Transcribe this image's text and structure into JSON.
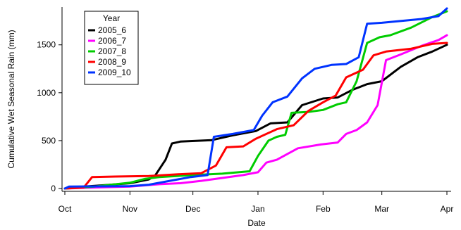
{
  "chart_data": {
    "type": "line",
    "xlabel": "Date",
    "ylabel": "Cumulative Wet Seasonal Rain (mm)",
    "ylim": [
      0,
      1880
    ],
    "yticks": [
      0,
      500,
      1000,
      1500
    ],
    "xrange": [
      "Oct 1",
      "Apr 1"
    ],
    "xticks": [
      {
        "label": "Oct",
        "date": "Oct 1"
      },
      {
        "label": "Nov",
        "date": "Nov 1"
      },
      {
        "label": "Dec",
        "date": "Dec 1"
      },
      {
        "label": "Jan",
        "date": "Jan 1"
      },
      {
        "label": "Feb",
        "date": "Feb 1"
      },
      {
        "label": "Mar",
        "date": "Mar 1"
      },
      {
        "label": "Apr",
        "date": "Apr 1"
      }
    ],
    "legend": {
      "title": "Year",
      "placement": "top-left"
    },
    "series": [
      {
        "name": "2005_6",
        "color": "#000000",
        "points": [
          [
            "Oct 1",
            0
          ],
          [
            "Oct 10",
            20
          ],
          [
            "Oct 20",
            35
          ],
          [
            "Nov 1",
            55
          ],
          [
            "Nov 10",
            95
          ],
          [
            "Nov 13",
            135
          ],
          [
            "Nov 18",
            300
          ],
          [
            "Nov 21",
            470
          ],
          [
            "Nov 25",
            490
          ],
          [
            "Dec 10",
            505
          ],
          [
            "Dec 20",
            555
          ],
          [
            "Dec 31",
            600
          ],
          [
            "Jan 7",
            680
          ],
          [
            "Jan 15",
            690
          ],
          [
            "Jan 22",
            870
          ],
          [
            "Feb 1",
            940
          ],
          [
            "Feb 8",
            950
          ],
          [
            "Feb 15",
            1030
          ],
          [
            "Feb 22",
            1090
          ],
          [
            "Mar 1",
            1120
          ],
          [
            "Mar 10",
            1270
          ],
          [
            "Mar 18",
            1370
          ],
          [
            "Mar 25",
            1430
          ],
          [
            "Apr 1",
            1500
          ]
        ]
      },
      {
        "name": "2006_7",
        "color": "#ff00ff",
        "points": [
          [
            "Oct 1",
            0
          ],
          [
            "Oct 15",
            10
          ],
          [
            "Nov 1",
            20
          ],
          [
            "Nov 15",
            45
          ],
          [
            "Nov 25",
            55
          ],
          [
            "Dec 5",
            80
          ],
          [
            "Dec 15",
            110
          ],
          [
            "Dec 25",
            140
          ],
          [
            "Jan 1",
            170
          ],
          [
            "Jan 5",
            270
          ],
          [
            "Jan 10",
            300
          ],
          [
            "Jan 20",
            420
          ],
          [
            "Jan 31",
            460
          ],
          [
            "Feb 8",
            480
          ],
          [
            "Feb 12",
            570
          ],
          [
            "Feb 17",
            610
          ],
          [
            "Feb 22",
            690
          ],
          [
            "Feb 27",
            870
          ],
          [
            "Mar 3",
            1340
          ],
          [
            "Mar 10",
            1400
          ],
          [
            "Mar 20",
            1490
          ],
          [
            "Mar 28",
            1550
          ],
          [
            "Apr 1",
            1600
          ]
        ]
      },
      {
        "name": "2007_8",
        "color": "#00cc00",
        "points": [
          [
            "Oct 1",
            0
          ],
          [
            "Oct 15",
            20
          ],
          [
            "Nov 1",
            60
          ],
          [
            "Nov 8",
            100
          ],
          [
            "Nov 15",
            120
          ],
          [
            "Dec 1",
            140
          ],
          [
            "Dec 15",
            155
          ],
          [
            "Dec 28",
            180
          ],
          [
            "Jan 1",
            340
          ],
          [
            "Jan 6",
            500
          ],
          [
            "Jan 10",
            540
          ],
          [
            "Jan 14",
            560
          ],
          [
            "Jan 17",
            790
          ],
          [
            "Jan 25",
            800
          ],
          [
            "Feb 1",
            820
          ],
          [
            "Feb 8",
            880
          ],
          [
            "Feb 12",
            900
          ],
          [
            "Feb 17",
            1120
          ],
          [
            "Feb 22",
            1520
          ],
          [
            "Feb 28",
            1580
          ],
          [
            "Mar 5",
            1600
          ],
          [
            "Mar 15",
            1680
          ],
          [
            "Mar 25",
            1790
          ],
          [
            "Apr 1",
            1850
          ]
        ]
      },
      {
        "name": "2008_9",
        "color": "#ff0000",
        "points": [
          [
            "Oct 1",
            0
          ],
          [
            "Oct 10",
            10
          ],
          [
            "Oct 14",
            120
          ],
          [
            "Oct 25",
            125
          ],
          [
            "Nov 10",
            130
          ],
          [
            "Nov 25",
            150
          ],
          [
            "Dec 5",
            160
          ],
          [
            "Dec 12",
            240
          ],
          [
            "Dec 17",
            430
          ],
          [
            "Dec 25",
            440
          ],
          [
            "Dec 31",
            520
          ],
          [
            "Jan 10",
            620
          ],
          [
            "Jan 18",
            660
          ],
          [
            "Jan 25",
            810
          ],
          [
            "Feb 1",
            900
          ],
          [
            "Feb 7",
            970
          ],
          [
            "Feb 12",
            1160
          ],
          [
            "Feb 20",
            1240
          ],
          [
            "Feb 25",
            1390
          ],
          [
            "Mar 3",
            1430
          ],
          [
            "Mar 15",
            1460
          ],
          [
            "Mar 25",
            1510
          ],
          [
            "Apr 1",
            1520
          ]
        ]
      },
      {
        "name": "2009_10",
        "color": "#0033ff",
        "points": [
          [
            "Oct 1",
            0
          ],
          [
            "Oct 3",
            20
          ],
          [
            "Nov 1",
            25
          ],
          [
            "Nov 10",
            40
          ],
          [
            "Nov 20",
            80
          ],
          [
            "Nov 30",
            120
          ],
          [
            "Dec 8",
            140
          ],
          [
            "Dec 11",
            540
          ],
          [
            "Dec 20",
            570
          ],
          [
            "Dec 30",
            610
          ],
          [
            "Jan 3",
            760
          ],
          [
            "Jan 8",
            900
          ],
          [
            "Jan 15",
            960
          ],
          [
            "Jan 22",
            1150
          ],
          [
            "Jan 28",
            1250
          ],
          [
            "Feb 5",
            1290
          ],
          [
            "Feb 12",
            1300
          ],
          [
            "Feb 18",
            1370
          ],
          [
            "Feb 22",
            1720
          ],
          [
            "Mar 1",
            1730
          ],
          [
            "Mar 20",
            1770
          ],
          [
            "Mar 28",
            1800
          ],
          [
            "Apr 1",
            1880
          ]
        ]
      }
    ]
  }
}
